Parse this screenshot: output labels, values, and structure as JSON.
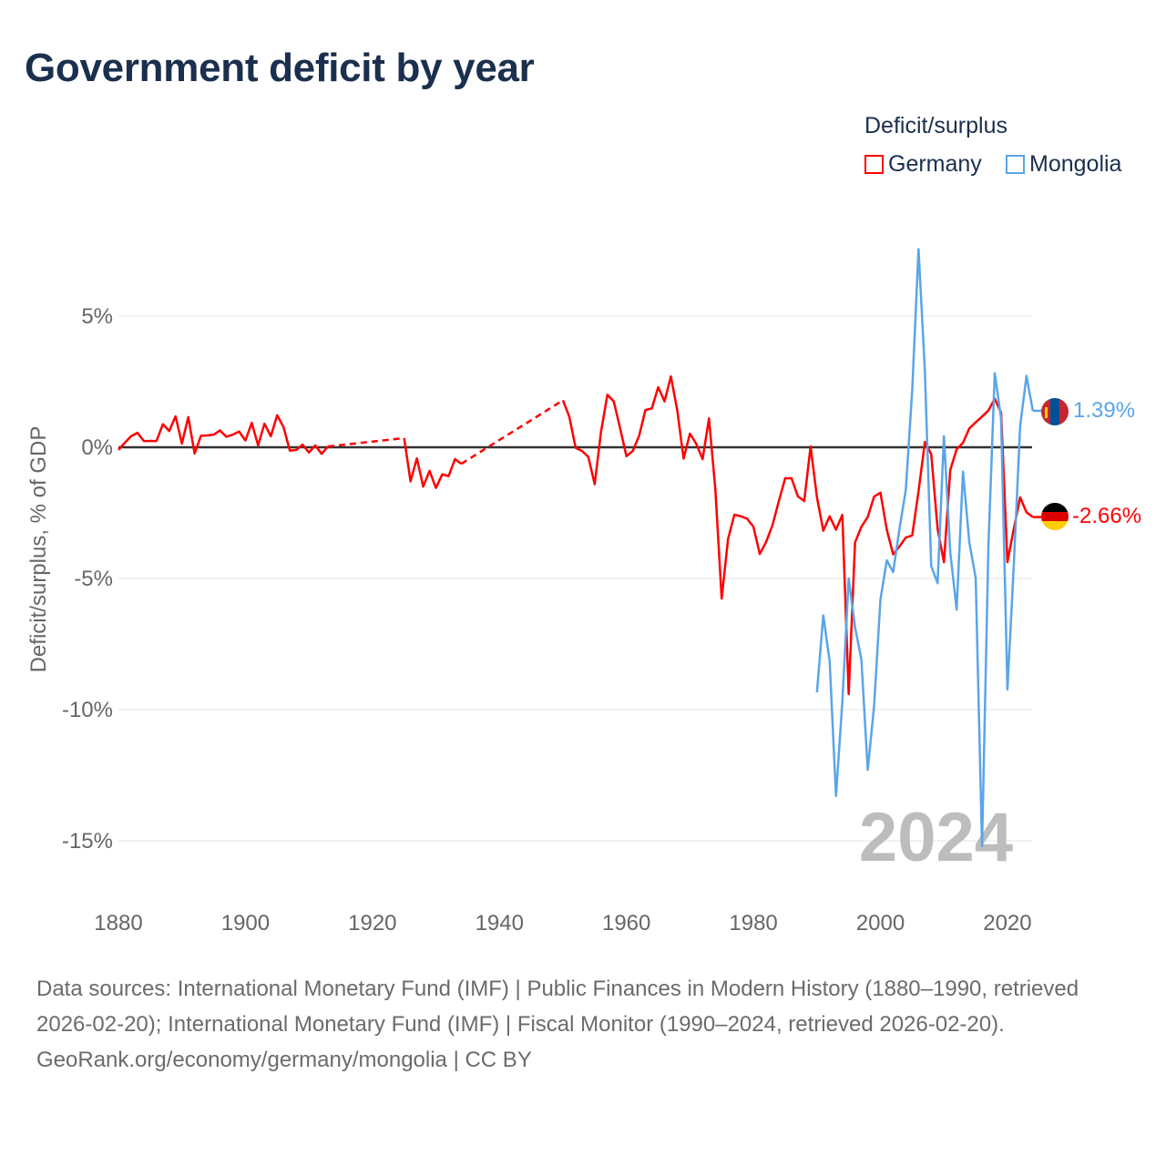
{
  "title": "Government deficit by year",
  "legend": {
    "title": "Deficit/surplus",
    "items": [
      {
        "name": "Germany",
        "color": "#ff0000"
      },
      {
        "name": "Mongolia",
        "color": "#5aa5e8"
      }
    ]
  },
  "footer": {
    "sources": "Data sources: International Monetary Fund (IMF) | Public Finances in Modern History (1880–1990, retrieved 2026-02-20); International Monetary Fund (IMF) | Fiscal Monitor (1990–2024, retrieved 2026-02-20).",
    "credit": "GeoRank.org/economy/germany/mongolia | CC BY"
  },
  "chart_data": {
    "type": "line",
    "title": "Government deficit by year",
    "xlabel": "",
    "ylabel": "Deficit/surplus, % of GDP",
    "xlim": [
      1880,
      2024
    ],
    "ylim": [
      -17,
      8
    ],
    "x_ticks": [
      1880,
      1900,
      1920,
      1940,
      1960,
      1980,
      2000,
      2020
    ],
    "y_ticks": [
      {
        "value": 5,
        "label": "5%"
      },
      {
        "value": 0,
        "label": "0%"
      },
      {
        "value": -5,
        "label": "-5%"
      },
      {
        "value": -10,
        "label": "-10%"
      },
      {
        "value": -15,
        "label": "-15%"
      }
    ],
    "grid": true,
    "legend_position": "top-right",
    "year_watermark": "2024",
    "series": [
      {
        "name": "Germany",
        "color": "#ff0000",
        "start_year": 1880,
        "end_label": "-2.66%",
        "values": [
          -0.1,
          0.17,
          0.42,
          0.55,
          0.24,
          0.24,
          0.24,
          0.88,
          0.62,
          1.18,
          0.14,
          1.15,
          -0.24,
          0.44,
          0.45,
          0.48,
          0.64,
          0.4,
          0.48,
          0.6,
          0.26,
          0.93,
          0.07,
          0.9,
          0.42,
          1.22,
          0.77,
          -0.13,
          -0.1,
          0.1,
          -0.2,
          0.07,
          -0.25,
          0.03,
          null,
          null,
          null,
          null,
          null,
          null,
          null,
          null,
          null,
          null,
          null,
          0.35,
          -1.3,
          -0.42,
          -1.5,
          -0.9,
          -1.55,
          -1.03,
          -1.1,
          -0.45,
          -0.63,
          null,
          null,
          null,
          null,
          null,
          null,
          null,
          null,
          null,
          null,
          null,
          null,
          null,
          null,
          null,
          1.79,
          1.17,
          -0.02,
          -0.14,
          -0.37,
          -1.41,
          0.59,
          2.0,
          1.75,
          0.73,
          -0.34,
          -0.14,
          0.44,
          1.42,
          1.48,
          2.29,
          1.75,
          2.7,
          1.42,
          -0.43,
          0.52,
          0.13,
          -0.45,
          1.1,
          -1.59,
          -5.77,
          -3.5,
          -2.57,
          -2.63,
          -2.72,
          -3.03,
          -4.07,
          -3.61,
          -2.97,
          -2.05,
          -1.18,
          -1.18,
          -1.87,
          -2.05,
          0.03,
          -1.9,
          -3.18,
          -2.63,
          -3.14,
          -2.58,
          -9.41,
          -3.63,
          -3.03,
          -2.66,
          -1.88,
          -1.73,
          -3.14,
          -4.08,
          -3.78,
          -3.44,
          -3.36,
          -1.68,
          0.2,
          -0.26,
          -3.11,
          -4.38,
          -0.86,
          -0.08,
          0.17,
          0.72,
          0.95,
          1.17,
          1.4,
          1.85,
          1.32,
          -4.38,
          -3.11,
          -1.91,
          -2.48,
          -2.66
        ]
      },
      {
        "name": "Mongolia",
        "color": "#5aa5e8",
        "start_year": 1990,
        "end_label": "1.39%",
        "values": [
          -9.34,
          -6.41,
          -8.14,
          -13.29,
          -9.71,
          -5.0,
          -6.86,
          -8.09,
          -12.3,
          -9.86,
          -5.81,
          -4.31,
          -4.76,
          -3.11,
          -1.61,
          2.15,
          7.55,
          2.9,
          -4.53,
          -5.18,
          0.42,
          -4.01,
          -6.19,
          -0.93,
          -3.63,
          -4.98,
          -15.2,
          -3.8,
          2.82,
          1.1,
          -9.23,
          -4.5,
          0.8,
          2.72,
          1.39
        ]
      }
    ]
  }
}
